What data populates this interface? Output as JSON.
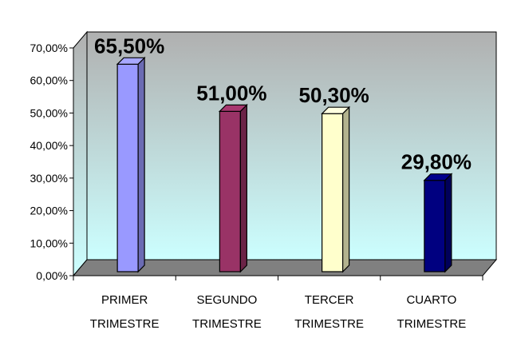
{
  "chart_data": {
    "type": "bar",
    "categories": [
      [
        "PRIMER",
        "TRIMESTRE"
      ],
      [
        "SEGUNDO",
        "TRIMESTRE"
      ],
      [
        "TERCER",
        "TRIMESTRE"
      ],
      [
        "CUARTO",
        "TRIMESTRE"
      ]
    ],
    "values": [
      65.5,
      51.0,
      50.3,
      29.8
    ],
    "value_labels": [
      "65,50%",
      "51,00%",
      "50,30%",
      "29,80%"
    ],
    "yticks": [
      "0,00%",
      "10,00%",
      "20,00%",
      "30,00%",
      "40,00%",
      "50,00%",
      "60,00%",
      "70,00%"
    ],
    "ylim": [
      0,
      70
    ],
    "bar_colors": [
      "#9999ff",
      "#993366",
      "#ffffcc",
      "#000080"
    ],
    "wall_gradient": [
      "#b0b0b0",
      "#ccffff"
    ],
    "floor_color": "#808080",
    "grid": false
  }
}
